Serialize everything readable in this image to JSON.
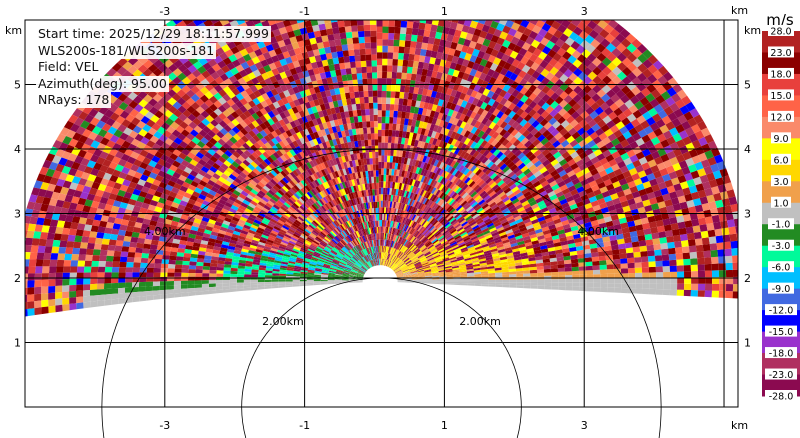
{
  "info": {
    "start_time": "Start time: 2025/12/29 18:11:57.999",
    "instrument": "WLS200s-181/WLS200s-181",
    "field": "Field: VEL",
    "azimuth": "Azimuth(deg): 95.00",
    "nrays": "NRays: 178"
  },
  "chart_data": {
    "type": "heatmap",
    "field": "VEL",
    "xlabel": "km",
    "ylabel": "km",
    "xlim": [
      -5,
      5.2
    ],
    "ylim": [
      0,
      6
    ],
    "xticks": [
      "-3",
      "-1",
      "1",
      "3"
    ],
    "yticks": [
      "1",
      "2",
      "3",
      "4",
      "5"
    ],
    "grid": true,
    "range_rings": [
      "2.00km",
      "4.00km"
    ],
    "colorbar": {
      "label": "m/s",
      "ticks": [
        "28.0",
        "23.0",
        "18.0",
        "15.0",
        "12.0",
        "9.0",
        "6.0",
        "3.0",
        "1.0",
        "-1.0",
        "-3.0",
        "-6.0",
        "-9.0",
        "-12.0",
        "-15.0",
        "-18.0",
        "-23.0",
        "-28.0"
      ],
      "colors": [
        "#b22222",
        "#8b0000",
        "#e8403c",
        "#ff6347",
        "#fa8a6a",
        "#ffff00",
        "#ffd700",
        "#f0a04b",
        "#c0c0c0",
        "#228b22",
        "#00fa9a",
        "#00bfff",
        "#4169e1",
        "#0000ff",
        "#9932cc",
        "#b03060",
        "#8b0a50"
      ]
    }
  }
}
